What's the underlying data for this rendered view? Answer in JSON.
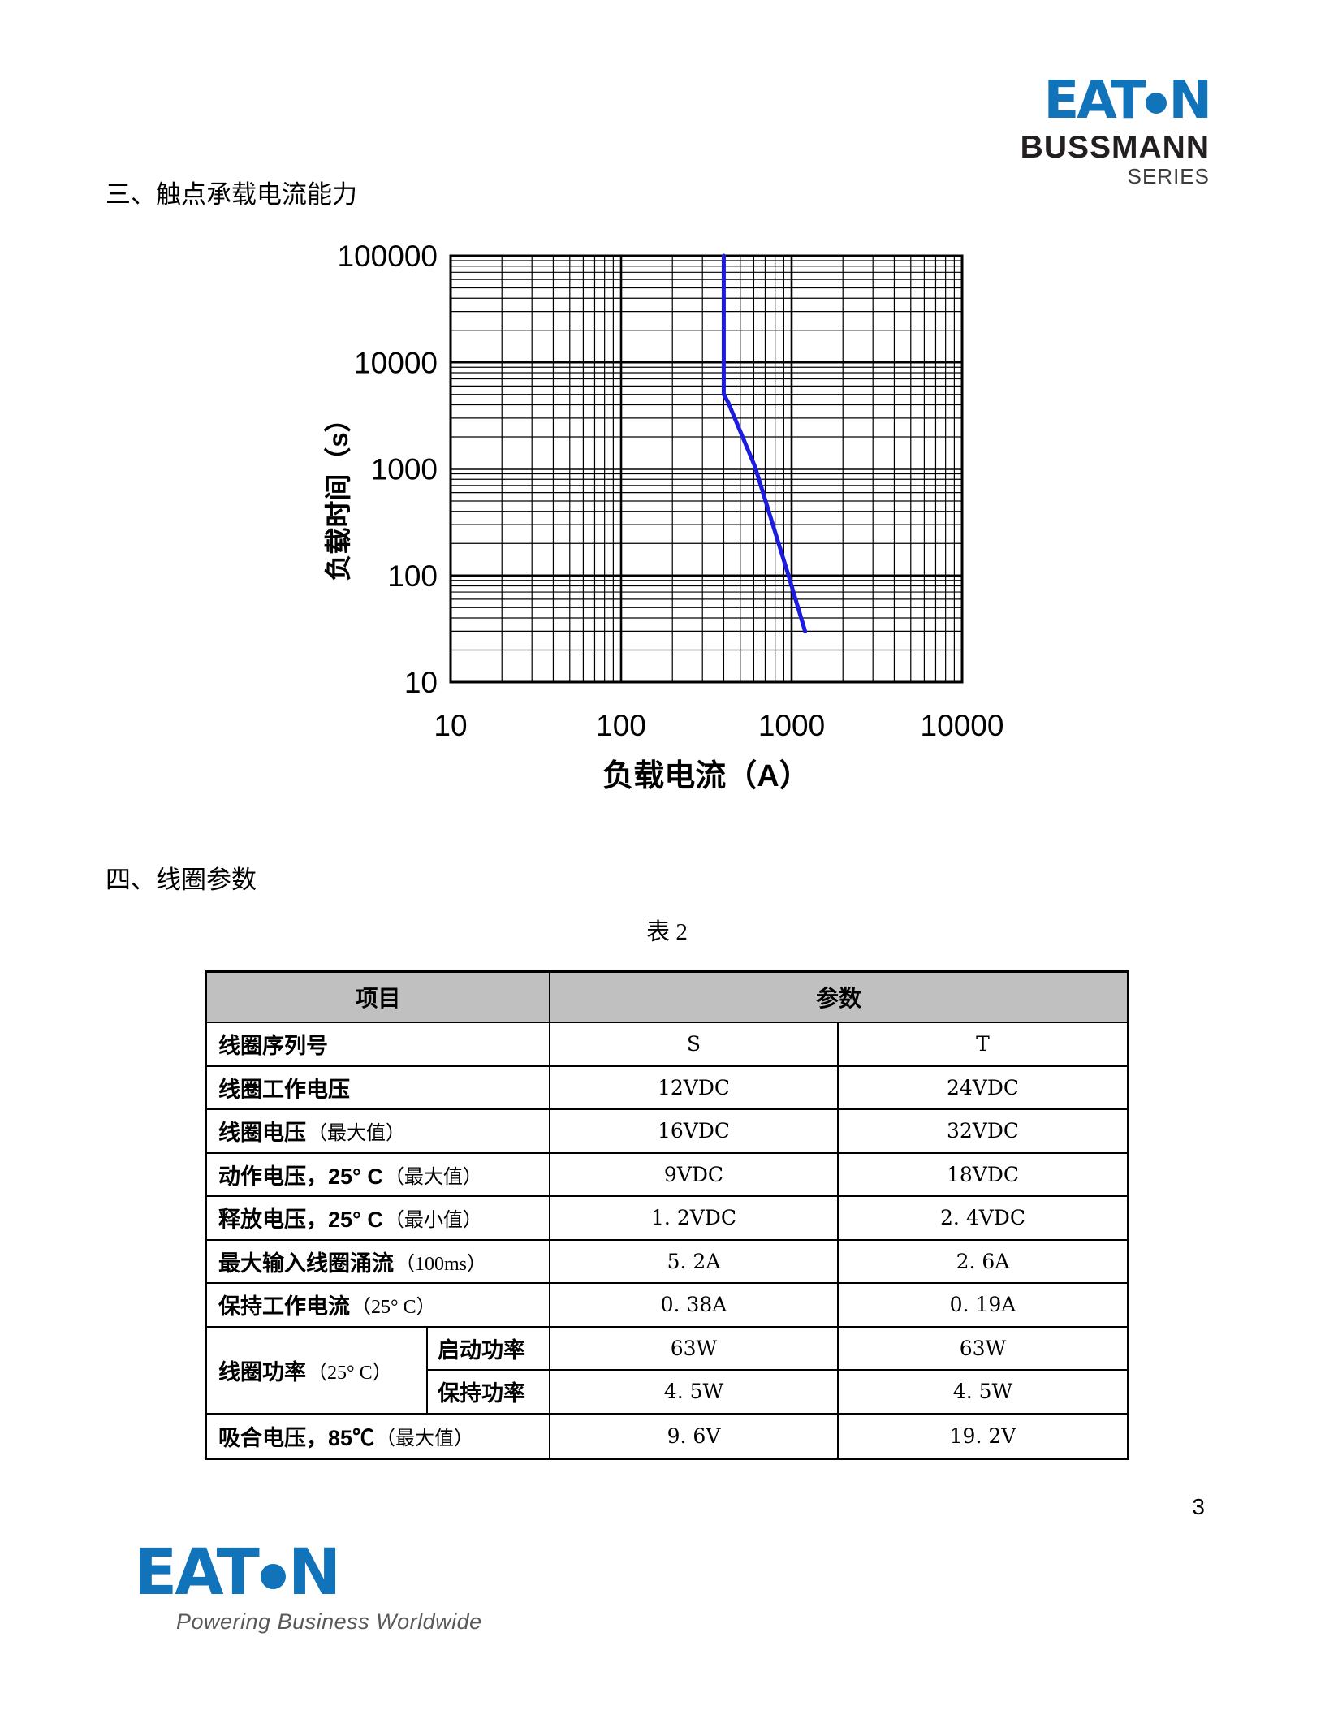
{
  "page": {
    "number": "3"
  },
  "top_brand": {
    "wordmark_pre": "EAT",
    "wordmark_post": "N",
    "line1": "BUSSMANN",
    "line2": "SERIES",
    "brand_blue": "#1173b9"
  },
  "sections": {
    "three": {
      "title": "三、触点承载电流能力"
    },
    "four": {
      "title": "四、线圈参数"
    }
  },
  "chart_data": {
    "type": "line",
    "title": "",
    "xlabel": "负载电流（A）",
    "ylabel": "负载时间（s）",
    "x_scale": "log",
    "y_scale": "log",
    "xlim": [
      10,
      10000
    ],
    "ylim": [
      10,
      100000
    ],
    "x_ticks": [
      "10",
      "100",
      "1000",
      "10000"
    ],
    "y_ticks": [
      "10",
      "100",
      "1000",
      "10000",
      "100000"
    ],
    "grid": {
      "major": true,
      "minor": true
    },
    "legend_position": "none",
    "line_color": "#1c1ce0",
    "series": [
      {
        "points": [
          [
            400,
            100000
          ],
          [
            400,
            5000
          ],
          [
            425,
            4200
          ],
          [
            610,
            1050
          ],
          [
            950,
            105
          ],
          [
            1200,
            30
          ]
        ]
      }
    ]
  },
  "table": {
    "caption": "表 2",
    "headers": {
      "item": "项目",
      "params": "参数"
    },
    "rows": [
      {
        "label": "线圈序列号",
        "note": "",
        "s": "S",
        "t": "T"
      },
      {
        "label": "线圈工作电压",
        "note": "",
        "s": "12VDC",
        "t": "24VDC"
      },
      {
        "label": "线圈电压",
        "note": "（最大值）",
        "s": "16VDC",
        "t": "32VDC"
      },
      {
        "label": "动作电压，25° C",
        "note": "（最大值）",
        "s": "9VDC",
        "t": "18VDC"
      },
      {
        "label": "释放电压，25° C",
        "note": "（最小值）",
        "s": "1. 2VDC",
        "t": "2. 4VDC"
      },
      {
        "label": "最大输入线圈涌流",
        "note": "（100ms）",
        "s": "5. 2A",
        "t": "2. 6A"
      },
      {
        "label": "保持工作电流",
        "note": "（25° C）",
        "s": "0. 38A",
        "t": "0. 19A"
      }
    ],
    "power_row": {
      "label": "线圈功率",
      "note": "（25° C）",
      "subs": [
        {
          "name": "启动功率",
          "s": "63W",
          "t": "63W"
        },
        {
          "name": "保持功率",
          "s": "4. 5W",
          "t": "4. 5W"
        }
      ]
    },
    "last_row": {
      "label": "吸合电压，85℃",
      "note": "（最大值）",
      "s": "9. 6V",
      "t": "19. 2V"
    }
  },
  "footer_brand": {
    "wordmark_pre": "EAT",
    "wordmark_post": "N",
    "tagline": "Powering Business Worldwide"
  }
}
